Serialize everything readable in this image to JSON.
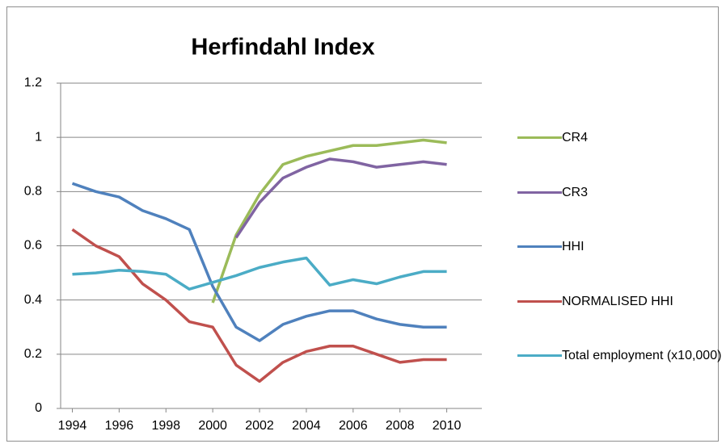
{
  "chart_data": {
    "type": "line",
    "title": "Herfindahl Index",
    "x": [
      1994,
      1995,
      1996,
      1997,
      1998,
      1999,
      2000,
      2001,
      2002,
      2003,
      2004,
      2005,
      2006,
      2007,
      2008,
      2009,
      2010
    ],
    "xlim": [
      1993.5,
      2011.5
    ],
    "xticks": [
      1994,
      1996,
      1998,
      2000,
      2002,
      2004,
      2006,
      2008,
      2010
    ],
    "ylim": [
      0,
      1.2
    ],
    "yticks": [
      0,
      0.2,
      0.4,
      0.6,
      0.8,
      1,
      1.2
    ],
    "grid": true,
    "legend": "right",
    "series": [
      {
        "name": "CR4",
        "color": "#9bbb59",
        "values": [
          null,
          null,
          null,
          null,
          null,
          null,
          0.39,
          0.64,
          0.79,
          0.9,
          0.93,
          0.95,
          0.97,
          0.97,
          0.98,
          0.99,
          0.98
        ]
      },
      {
        "name": "CR3",
        "color": "#8064a2",
        "values": [
          null,
          null,
          null,
          null,
          null,
          null,
          null,
          0.63,
          0.76,
          0.85,
          0.89,
          0.92,
          0.91,
          0.89,
          0.9,
          0.91,
          0.9
        ]
      },
      {
        "name": "HHI",
        "color": "#4f81bd",
        "values": [
          0.83,
          0.8,
          0.78,
          0.73,
          0.7,
          0.66,
          0.45,
          0.3,
          0.25,
          0.31,
          0.34,
          0.36,
          0.36,
          0.33,
          0.31,
          0.3,
          0.3
        ]
      },
      {
        "name": "NORMALISED HHI",
        "color": "#c0504d",
        "values": [
          0.66,
          0.6,
          0.56,
          0.46,
          0.4,
          0.32,
          0.3,
          0.16,
          0.1,
          0.17,
          0.21,
          0.23,
          0.23,
          0.2,
          0.17,
          0.18,
          0.18
        ]
      },
      {
        "name": "Total employment (x10,000)",
        "color": "#4bacc6",
        "values": [
          0.495,
          0.5,
          0.51,
          0.505,
          0.495,
          0.44,
          0.465,
          0.49,
          0.52,
          0.54,
          0.555,
          0.455,
          0.475,
          0.46,
          0.485,
          0.505,
          0.505
        ]
      }
    ]
  }
}
